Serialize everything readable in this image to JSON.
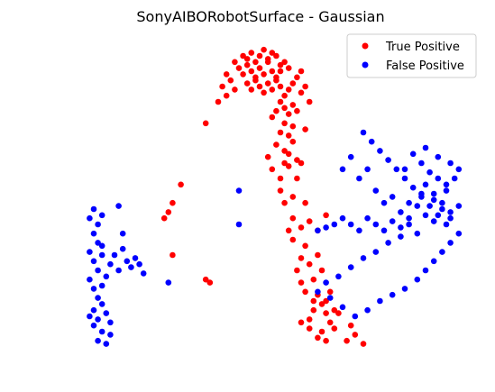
{
  "chart_data": {
    "type": "scatter",
    "title": "SonyAIBORobotSurface - Gaussian",
    "xlabel": "",
    "ylabel": "",
    "axes_visible": false,
    "grid": false,
    "legend_placement": "top-right",
    "xlim": [
      0,
      100
    ],
    "ylim": [
      0,
      100
    ],
    "series": [
      {
        "name": "True Positive",
        "color": "#ff0000",
        "points": [
          [
            46,
            95
          ],
          [
            47,
            94
          ],
          [
            48,
            96
          ],
          [
            49,
            93
          ],
          [
            50,
            95
          ],
          [
            51,
            97
          ],
          [
            52,
            94
          ],
          [
            53,
            96
          ],
          [
            54,
            95
          ],
          [
            55,
            92
          ],
          [
            45,
            91
          ],
          [
            46,
            89
          ],
          [
            47,
            92
          ],
          [
            48,
            90
          ],
          [
            49,
            88
          ],
          [
            50,
            91
          ],
          [
            51,
            89
          ],
          [
            52,
            93
          ],
          [
            53,
            90
          ],
          [
            54,
            88
          ],
          [
            55,
            90
          ],
          [
            56,
            93
          ],
          [
            57,
            91
          ],
          [
            47,
            86
          ],
          [
            48,
            84
          ],
          [
            49,
            87
          ],
          [
            50,
            85
          ],
          [
            51,
            83
          ],
          [
            52,
            86
          ],
          [
            53,
            84
          ],
          [
            54,
            87
          ],
          [
            55,
            85
          ],
          [
            56,
            82
          ],
          [
            44,
            84
          ],
          [
            43,
            87
          ],
          [
            42,
            82
          ],
          [
            41,
            85
          ],
          [
            40,
            80
          ],
          [
            42,
            89
          ],
          [
            44,
            93
          ],
          [
            55,
            80
          ],
          [
            56,
            78
          ],
          [
            57,
            76
          ],
          [
            58,
            79
          ],
          [
            54,
            77
          ],
          [
            53,
            75
          ],
          [
            56,
            73
          ],
          [
            58,
            72
          ],
          [
            55,
            70
          ],
          [
            57,
            69
          ],
          [
            54,
            66
          ],
          [
            56,
            64
          ],
          [
            58,
            67
          ],
          [
            57,
            63
          ],
          [
            59,
            61
          ],
          [
            52,
            62
          ],
          [
            53,
            58
          ],
          [
            55,
            55
          ],
          [
            57,
            59
          ],
          [
            60,
            60
          ],
          [
            59,
            55
          ],
          [
            55,
            51
          ],
          [
            58,
            49
          ],
          [
            61,
            47
          ],
          [
            56,
            47
          ],
          [
            58,
            42
          ],
          [
            57,
            38
          ],
          [
            60,
            39
          ],
          [
            62,
            41
          ],
          [
            64,
            38
          ],
          [
            58,
            35
          ],
          [
            61,
            33
          ],
          [
            60,
            29
          ],
          [
            62,
            27
          ],
          [
            59,
            25
          ],
          [
            60,
            21
          ],
          [
            61,
            18
          ],
          [
            63,
            22
          ],
          [
            65,
            25
          ],
          [
            64,
            17
          ],
          [
            65,
            14
          ],
          [
            63,
            12
          ],
          [
            66,
            11
          ],
          [
            62,
            9
          ],
          [
            67,
            8
          ],
          [
            65,
            5
          ],
          [
            68,
            6
          ],
          [
            69,
            11
          ],
          [
            64,
            3
          ],
          [
            66,
            2
          ],
          [
            62,
            6
          ],
          [
            60,
            8
          ],
          [
            63,
            15
          ],
          [
            66,
            15
          ],
          [
            68,
            12
          ],
          [
            72,
            7
          ],
          [
            73,
            4
          ],
          [
            75,
            1
          ],
          [
            71,
            2
          ],
          [
            67,
            18
          ],
          [
            66,
            43
          ],
          [
            64,
            30
          ],
          [
            37,
            73
          ],
          [
            31,
            53
          ],
          [
            29,
            47
          ],
          [
            28,
            44
          ],
          [
            27,
            42
          ],
          [
            29,
            30
          ],
          [
            37,
            22
          ],
          [
            38,
            21
          ],
          [
            60,
            90
          ],
          [
            59,
            88
          ],
          [
            58,
            86
          ],
          [
            61,
            85
          ],
          [
            57,
            84
          ],
          [
            60,
            83
          ],
          [
            62,
            80
          ],
          [
            59,
            77
          ],
          [
            61,
            71
          ],
          [
            56,
            60
          ]
        ]
      },
      {
        "name": "False Positive",
        "color": "#0000ff",
        "points": [
          [
            9,
            42
          ],
          [
            10,
            45
          ],
          [
            11,
            40
          ],
          [
            12,
            43
          ],
          [
            10,
            37
          ],
          [
            11,
            34
          ],
          [
            9,
            31
          ],
          [
            10,
            28
          ],
          [
            12,
            30
          ],
          [
            11,
            25
          ],
          [
            9,
            22
          ],
          [
            10,
            19
          ],
          [
            11,
            16
          ],
          [
            12,
            20
          ],
          [
            13,
            23
          ],
          [
            12,
            14
          ],
          [
            10,
            12
          ],
          [
            11,
            9
          ],
          [
            13,
            11
          ],
          [
            14,
            8
          ],
          [
            12,
            5
          ],
          [
            14,
            4
          ],
          [
            13,
            1
          ],
          [
            11,
            2
          ],
          [
            9,
            10
          ],
          [
            10,
            7
          ],
          [
            12,
            33
          ],
          [
            14,
            27
          ],
          [
            15,
            30
          ],
          [
            16,
            25
          ],
          [
            17,
            32
          ],
          [
            18,
            28
          ],
          [
            19,
            26
          ],
          [
            20,
            29
          ],
          [
            21,
            27
          ],
          [
            22,
            24
          ],
          [
            17,
            37
          ],
          [
            16,
            46
          ],
          [
            28,
            21
          ],
          [
            45,
            51
          ],
          [
            45,
            40
          ],
          [
            64,
            38
          ],
          [
            66,
            39
          ],
          [
            68,
            40
          ],
          [
            70,
            42
          ],
          [
            72,
            40
          ],
          [
            74,
            38
          ],
          [
            76,
            42
          ],
          [
            78,
            40
          ],
          [
            80,
            38
          ],
          [
            82,
            41
          ],
          [
            84,
            39
          ],
          [
            86,
            40
          ],
          [
            88,
            37
          ],
          [
            90,
            43
          ],
          [
            92,
            41
          ],
          [
            94,
            45
          ],
          [
            96,
            42
          ],
          [
            70,
            58
          ],
          [
            72,
            62
          ],
          [
            74,
            55
          ],
          [
            76,
            58
          ],
          [
            78,
            51
          ],
          [
            80,
            47
          ],
          [
            82,
            49
          ],
          [
            84,
            44
          ],
          [
            86,
            42
          ],
          [
            88,
            46
          ],
          [
            90,
            53
          ],
          [
            92,
            50
          ],
          [
            94,
            47
          ],
          [
            96,
            44
          ],
          [
            98,
            46
          ],
          [
            95,
            51
          ],
          [
            93,
            55
          ],
          [
            91,
            57
          ],
          [
            89,
            60
          ],
          [
            87,
            63
          ],
          [
            85,
            58
          ],
          [
            90,
            65
          ],
          [
            93,
            62
          ],
          [
            96,
            60
          ],
          [
            98,
            58
          ],
          [
            97,
            55
          ],
          [
            95,
            53
          ],
          [
            92,
            48
          ],
          [
            89,
            50
          ],
          [
            86,
            47
          ],
          [
            84,
            36
          ],
          [
            81,
            34
          ],
          [
            78,
            31
          ],
          [
            75,
            29
          ],
          [
            72,
            26
          ],
          [
            69,
            23
          ],
          [
            66,
            21
          ],
          [
            64,
            18
          ],
          [
            67,
            16
          ],
          [
            70,
            13
          ],
          [
            73,
            10
          ],
          [
            76,
            12
          ],
          [
            79,
            15
          ],
          [
            82,
            17
          ],
          [
            85,
            19
          ],
          [
            88,
            22
          ],
          [
            90,
            25
          ],
          [
            92,
            28
          ],
          [
            94,
            31
          ],
          [
            96,
            34
          ],
          [
            98,
            37
          ],
          [
            95,
            40
          ],
          [
            93,
            43
          ],
          [
            91,
            46
          ],
          [
            89,
            49
          ],
          [
            87,
            52
          ],
          [
            85,
            55
          ],
          [
            83,
            58
          ],
          [
            81,
            61
          ],
          [
            79,
            64
          ],
          [
            77,
            67
          ],
          [
            75,
            70
          ]
        ]
      }
    ]
  }
}
